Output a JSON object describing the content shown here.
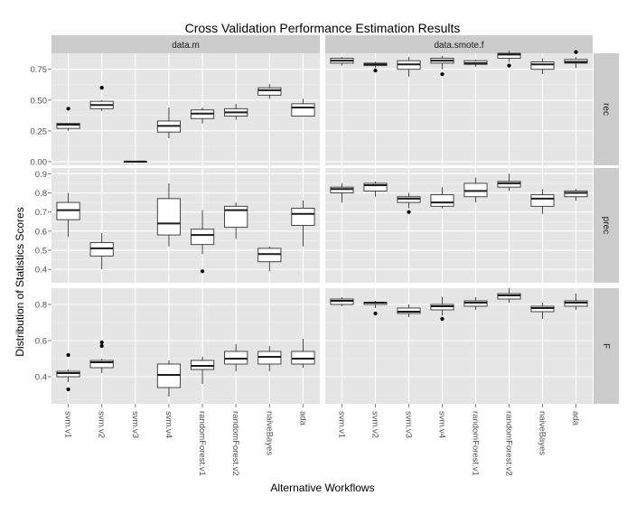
{
  "chart_data": {
    "type": "boxplot",
    "title": "Cross Validation Performance Estimation Results",
    "xlabel": "Alternative Workflows",
    "ylabel": "Distribution of Statistics Scores",
    "grid": true,
    "categories": [
      "svm.v1",
      "svm.v2",
      "svm.v3",
      "svm.v4",
      "randomForest.v1",
      "randomForest.v2",
      "naiveBayes",
      "ada"
    ],
    "columns": [
      "data.m",
      "data.smote.f"
    ],
    "rows": [
      {
        "name": "rec",
        "ylim": [
          -0.03,
          0.88
        ],
        "yticks": [
          0.0,
          0.25,
          0.5,
          0.75
        ],
        "ytick_labels": [
          "0.00",
          "0.25",
          "0.50",
          "0.75"
        ],
        "panels": {
          "data.m": [
            {
              "category": "svm.v1",
              "min": 0.25,
              "q1": 0.27,
              "median": 0.3,
              "q3": 0.31,
              "max": 0.31,
              "outliers": [
                0.43
              ]
            },
            {
              "category": "svm.v2",
              "min": 0.41,
              "q1": 0.43,
              "median": 0.46,
              "q3": 0.49,
              "max": 0.5,
              "outliers": [
                0.6
              ]
            },
            {
              "category": "svm.v3",
              "min": 0.0,
              "q1": 0.0,
              "median": 0.0,
              "q3": 0.0,
              "max": 0.0,
              "outliers": []
            },
            {
              "category": "svm.v4",
              "min": 0.19,
              "q1": 0.24,
              "median": 0.29,
              "q3": 0.33,
              "max": 0.44,
              "outliers": []
            },
            {
              "category": "randomForest.v1",
              "min": 0.31,
              "q1": 0.35,
              "median": 0.39,
              "q3": 0.42,
              "max": 0.44,
              "outliers": []
            },
            {
              "category": "randomForest.v2",
              "min": 0.34,
              "q1": 0.37,
              "median": 0.4,
              "q3": 0.43,
              "max": 0.47,
              "outliers": []
            },
            {
              "category": "naiveBayes",
              "min": 0.51,
              "q1": 0.54,
              "median": 0.58,
              "q3": 0.6,
              "max": 0.63,
              "outliers": []
            },
            {
              "category": "ada",
              "min": 0.37,
              "q1": 0.37,
              "median": 0.44,
              "q3": 0.47,
              "max": 0.51,
              "outliers": []
            }
          ],
          "data.smote.f": [
            {
              "category": "svm.v1",
              "min": 0.78,
              "q1": 0.8,
              "median": 0.82,
              "q3": 0.84,
              "max": 0.85,
              "outliers": []
            },
            {
              "category": "svm.v2",
              "min": 0.76,
              "q1": 0.78,
              "median": 0.79,
              "q3": 0.8,
              "max": 0.81,
              "outliers": [
                0.74
              ]
            },
            {
              "category": "svm.v3",
              "min": 0.69,
              "q1": 0.75,
              "median": 0.79,
              "q3": 0.82,
              "max": 0.85,
              "outliers": []
            },
            {
              "category": "svm.v4",
              "min": 0.75,
              "q1": 0.8,
              "median": 0.82,
              "q3": 0.84,
              "max": 0.86,
              "outliers": [
                0.71
              ]
            },
            {
              "category": "randomForest.v1",
              "min": 0.77,
              "q1": 0.79,
              "median": 0.8,
              "q3": 0.82,
              "max": 0.83,
              "outliers": []
            },
            {
              "category": "randomForest.v2",
              "min": 0.81,
              "q1": 0.84,
              "median": 0.87,
              "q3": 0.88,
              "max": 0.9,
              "outliers": [
                0.78
              ]
            },
            {
              "category": "naiveBayes",
              "min": 0.71,
              "q1": 0.75,
              "median": 0.79,
              "q3": 0.81,
              "max": 0.84,
              "outliers": []
            },
            {
              "category": "ada",
              "min": 0.76,
              "q1": 0.8,
              "median": 0.81,
              "q3": 0.83,
              "max": 0.85,
              "outliers": [
                0.89
              ]
            }
          ]
        }
      },
      {
        "name": "prec",
        "ylim": [
          0.33,
          0.93
        ],
        "yticks": [
          0.4,
          0.5,
          0.6,
          0.7,
          0.8,
          0.9
        ],
        "ytick_labels": [
          "0.4",
          "0.5",
          "0.6",
          "0.7",
          "0.8",
          "0.9"
        ],
        "panels": {
          "data.m": [
            {
              "category": "svm.v1",
              "min": 0.57,
              "q1": 0.66,
              "median": 0.71,
              "q3": 0.75,
              "max": 0.8,
              "outliers": []
            },
            {
              "category": "svm.v2",
              "min": 0.4,
              "q1": 0.47,
              "median": 0.51,
              "q3": 0.54,
              "max": 0.59,
              "outliers": []
            },
            {
              "category": "svm.v4",
              "min": 0.52,
              "q1": 0.58,
              "median": 0.64,
              "q3": 0.77,
              "max": 0.85,
              "outliers": []
            },
            {
              "category": "randomForest.v1",
              "min": 0.48,
              "q1": 0.53,
              "median": 0.58,
              "q3": 0.61,
              "max": 0.71,
              "outliers": [
                0.39
              ]
            },
            {
              "category": "randomForest.v2",
              "min": 0.56,
              "q1": 0.62,
              "median": 0.71,
              "q3": 0.73,
              "max": 0.75,
              "outliers": []
            },
            {
              "category": "naiveBayes",
              "min": 0.39,
              "q1": 0.44,
              "median": 0.48,
              "q3": 0.51,
              "max": 0.52,
              "outliers": []
            },
            {
              "category": "ada",
              "min": 0.52,
              "q1": 0.63,
              "median": 0.69,
              "q3": 0.72,
              "max": 0.76,
              "outliers": []
            }
          ],
          "data.smote.f": [
            {
              "category": "svm.v1",
              "min": 0.75,
              "q1": 0.8,
              "median": 0.82,
              "q3": 0.83,
              "max": 0.85,
              "outliers": []
            },
            {
              "category": "svm.v2",
              "min": 0.78,
              "q1": 0.81,
              "median": 0.84,
              "q3": 0.85,
              "max": 0.86,
              "outliers": []
            },
            {
              "category": "svm.v3",
              "min": 0.72,
              "q1": 0.75,
              "median": 0.77,
              "q3": 0.78,
              "max": 0.8,
              "outliers": [
                0.7
              ]
            },
            {
              "category": "svm.v4",
              "min": 0.72,
              "q1": 0.73,
              "median": 0.75,
              "q3": 0.79,
              "max": 0.83,
              "outliers": []
            },
            {
              "category": "randomForest.v1",
              "min": 0.75,
              "q1": 0.78,
              "median": 0.81,
              "q3": 0.85,
              "max": 0.88,
              "outliers": []
            },
            {
              "category": "randomForest.v2",
              "min": 0.81,
              "q1": 0.83,
              "median": 0.85,
              "q3": 0.86,
              "max": 0.9,
              "outliers": []
            },
            {
              "category": "naiveBayes",
              "min": 0.69,
              "q1": 0.73,
              "median": 0.77,
              "q3": 0.79,
              "max": 0.82,
              "outliers": []
            },
            {
              "category": "ada",
              "min": 0.76,
              "q1": 0.78,
              "median": 0.8,
              "q3": 0.81,
              "max": 0.82,
              "outliers": []
            }
          ]
        }
      },
      {
        "name": "F",
        "ylim": [
          0.25,
          0.89
        ],
        "yticks": [
          0.4,
          0.6,
          0.8
        ],
        "ytick_labels": [
          "0.4",
          "0.6",
          "0.8"
        ],
        "panels": {
          "data.m": [
            {
              "category": "svm.v1",
              "min": 0.37,
              "q1": 0.4,
              "median": 0.42,
              "q3": 0.43,
              "max": 0.44,
              "outliers": [
                0.52,
                0.33
              ]
            },
            {
              "category": "svm.v2",
              "min": 0.42,
              "q1": 0.45,
              "median": 0.48,
              "q3": 0.49,
              "max": 0.5,
              "outliers": [
                0.59,
                0.57
              ]
            },
            {
              "category": "svm.v4",
              "min": 0.29,
              "q1": 0.34,
              "median": 0.41,
              "q3": 0.47,
              "max": 0.49,
              "outliers": []
            },
            {
              "category": "randomForest.v1",
              "min": 0.36,
              "q1": 0.44,
              "median": 0.46,
              "q3": 0.49,
              "max": 0.51,
              "outliers": []
            },
            {
              "category": "randomForest.v2",
              "min": 0.43,
              "q1": 0.47,
              "median": 0.5,
              "q3": 0.54,
              "max": 0.58,
              "outliers": []
            },
            {
              "category": "naiveBayes",
              "min": 0.43,
              "q1": 0.47,
              "median": 0.51,
              "q3": 0.54,
              "max": 0.57,
              "outliers": []
            },
            {
              "category": "ada",
              "min": 0.45,
              "q1": 0.47,
              "median": 0.5,
              "q3": 0.54,
              "max": 0.61,
              "outliers": []
            }
          ],
          "data.smote.f": [
            {
              "category": "svm.v1",
              "min": 0.79,
              "q1": 0.8,
              "median": 0.82,
              "q3": 0.83,
              "max": 0.84,
              "outliers": []
            },
            {
              "category": "svm.v2",
              "min": 0.78,
              "q1": 0.8,
              "median": 0.81,
              "q3": 0.81,
              "max": 0.82,
              "outliers": [
                0.75
              ]
            },
            {
              "category": "svm.v3",
              "min": 0.73,
              "q1": 0.75,
              "median": 0.76,
              "q3": 0.78,
              "max": 0.8,
              "outliers": []
            },
            {
              "category": "svm.v4",
              "min": 0.74,
              "q1": 0.77,
              "median": 0.79,
              "q3": 0.8,
              "max": 0.84,
              "outliers": [
                0.72
              ]
            },
            {
              "category": "randomForest.v1",
              "min": 0.77,
              "q1": 0.79,
              "median": 0.81,
              "q3": 0.82,
              "max": 0.84,
              "outliers": []
            },
            {
              "category": "randomForest.v2",
              "min": 0.81,
              "q1": 0.83,
              "median": 0.85,
              "q3": 0.86,
              "max": 0.89,
              "outliers": []
            },
            {
              "category": "naiveBayes",
              "min": 0.72,
              "q1": 0.76,
              "median": 0.78,
              "q3": 0.79,
              "max": 0.81,
              "outliers": []
            },
            {
              "category": "ada",
              "min": 0.77,
              "q1": 0.79,
              "median": 0.81,
              "q3": 0.82,
              "max": 0.86,
              "outliers": []
            }
          ]
        }
      }
    ]
  }
}
